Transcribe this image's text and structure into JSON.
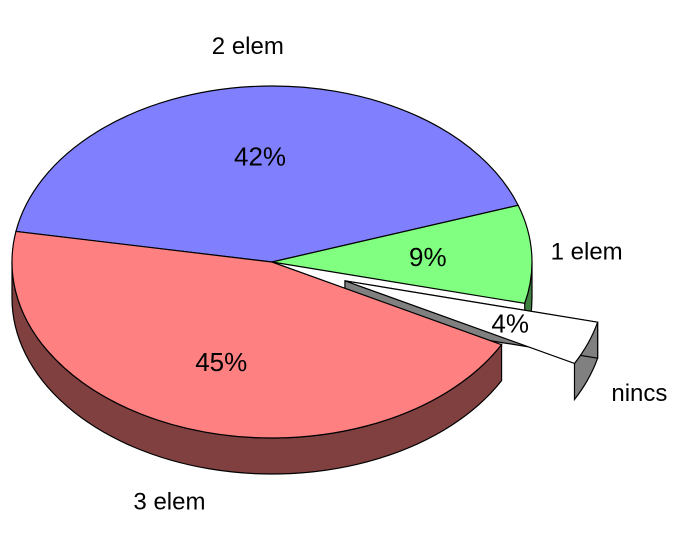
{
  "chart_data": {
    "type": "pie",
    "title": "",
    "slices": [
      {
        "category": "2 elem",
        "value": 42,
        "label": "42%",
        "color": "#8080ff",
        "side_color": "#40407f",
        "exploded": false
      },
      {
        "category": "1 elem",
        "value": 9,
        "label": "9%",
        "color": "#80ff80",
        "side_color": "#408040",
        "exploded": false
      },
      {
        "category": "nincs",
        "value": 4,
        "label": "4%",
        "color": "#ffffff",
        "side_color": "#808080",
        "exploded": true
      },
      {
        "category": "3 elem",
        "value": 45,
        "label": "45%",
        "color": "#ff8080",
        "side_color": "#804040",
        "exploded": false
      }
    ],
    "legend": "none",
    "style": "3d-tilted"
  }
}
